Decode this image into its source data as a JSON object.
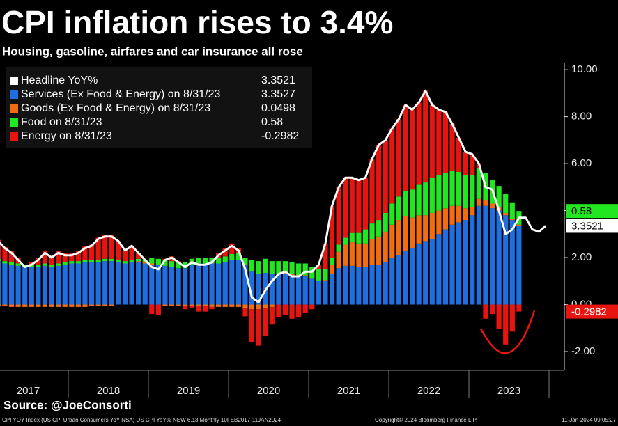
{
  "chart_data": {
    "type": "bar",
    "title": "CPI inflation rises to 3.4%",
    "subtitle": "Housing, gasoline, airfares and car insurance all rose",
    "source": "Source: @JoeConsorti",
    "footer": [
      "CPI YOY Index (US CPI Urban Consumers YoY NSA) US CPI YoY% NEW 6.13  Monthly 10FEB2017-11JAN2024",
      "Copyright© 2024 Bloomberg Finance L.P.",
      "11-Jan-2024 09:05:27"
    ],
    "x_labels": [
      "2017",
      "2018",
      "2019",
      "2020",
      "2021",
      "2022",
      "2023"
    ],
    "xlim": [
      2017,
      2024
    ],
    "xticks": [
      2018,
      2019,
      2020,
      2021,
      2022,
      2023,
      2024
    ],
    "ylim": [
      -2.8,
      10.3
    ],
    "yticks": [
      {
        "value": 10,
        "label": "10.00"
      },
      {
        "value": 8,
        "label": "8.00"
      },
      {
        "value": 6,
        "label": "6.00"
      },
      {
        "value": 4,
        "label": "4.00"
      },
      {
        "value": 2,
        "label": "2.00"
      },
      {
        "value": 0,
        "label": "0.00"
      },
      {
        "value": -2,
        "label": "-2.00"
      }
    ],
    "series": [
      {
        "name": "Headline YoY%",
        "color": "#ffffff",
        "type": "line",
        "values": [
          2.7,
          2.4,
          2.2,
          1.9,
          1.6,
          1.7,
          1.9,
          2.2,
          2.0,
          2.2,
          2.1,
          2.1,
          2.2,
          2.4,
          2.5,
          2.8,
          2.9,
          2.9,
          2.7,
          2.3,
          2.5,
          2.2,
          1.9,
          1.6,
          1.5,
          1.9,
          2.0,
          1.8,
          1.6,
          1.8,
          1.7,
          1.7,
          1.8,
          2.1,
          2.3,
          2.5,
          2.3,
          1.5,
          0.3,
          0.1,
          0.6,
          1.0,
          1.3,
          1.4,
          1.2,
          1.2,
          1.4,
          1.4,
          1.7,
          2.6,
          4.2,
          5.0,
          5.4,
          5.4,
          5.3,
          5.4,
          6.2,
          6.8,
          7.0,
          7.5,
          7.9,
          8.5,
          8.3,
          8.6,
          9.1,
          8.5,
          8.3,
          8.2,
          7.7,
          7.1,
          6.5,
          6.4,
          6.0,
          5.0,
          4.9,
          4.0,
          3.0,
          3.2,
          3.7,
          3.7,
          3.2,
          3.1,
          3.3521
        ]
      },
      {
        "name": "Services (Ex Food & Energy) on 8/31/23",
        "color": "#1f6fe0",
        "type": "bar",
        "values": [
          1.85,
          1.75,
          1.7,
          1.65,
          1.6,
          1.6,
          1.6,
          1.65,
          1.6,
          1.65,
          1.7,
          1.75,
          1.75,
          1.8,
          1.8,
          1.8,
          1.85,
          1.85,
          1.8,
          1.75,
          1.8,
          1.8,
          1.75,
          1.7,
          1.7,
          1.65,
          1.6,
          1.55,
          1.55,
          1.7,
          1.75,
          1.75,
          1.75,
          1.75,
          1.8,
          1.9,
          1.9,
          1.7,
          1.4,
          1.3,
          1.35,
          1.3,
          1.3,
          1.3,
          1.25,
          1.2,
          1.2,
          1.1,
          1.0,
          1.0,
          1.3,
          1.55,
          1.65,
          1.65,
          1.6,
          1.6,
          1.7,
          1.7,
          1.8,
          2.0,
          2.1,
          2.3,
          2.4,
          2.6,
          2.7,
          2.8,
          3.0,
          3.2,
          3.4,
          3.5,
          3.6,
          3.8,
          4.2,
          4.2,
          4.1,
          4.0,
          3.8,
          3.6,
          3.3527,
          null,
          null,
          null,
          null
        ]
      },
      {
        "name": "Goods (Ex Food & Energy) on 8/31/23",
        "color": "#f26d12",
        "type": "bar",
        "values": [
          -0.05,
          -0.05,
          -0.1,
          -0.1,
          -0.1,
          -0.1,
          -0.1,
          -0.1,
          -0.1,
          -0.1,
          -0.1,
          -0.1,
          -0.1,
          -0.1,
          -0.05,
          -0.05,
          -0.05,
          -0.05,
          0,
          0,
          0,
          0.05,
          0.05,
          0.05,
          0,
          -0.05,
          -0.05,
          -0.05,
          -0.05,
          -0.05,
          -0.05,
          -0.05,
          -0.1,
          -0.1,
          -0.1,
          -0.1,
          -0.1,
          -0.15,
          -0.2,
          -0.2,
          -0.15,
          -0.1,
          0,
          0.05,
          0.05,
          0.05,
          0.05,
          0,
          0,
          0.05,
          0.4,
          0.7,
          0.9,
          1.0,
          1.0,
          1.0,
          1.1,
          1.2,
          1.3,
          1.4,
          1.5,
          1.45,
          1.3,
          1.2,
          1.1,
          1.1,
          1.0,
          0.9,
          0.8,
          0.7,
          0.5,
          0.35,
          0.3,
          0.25,
          0.2,
          0.15,
          0.1,
          0.05,
          0.0498,
          null,
          null,
          null,
          null
        ]
      },
      {
        "name": "Food on 8/31/23",
        "color": "#22e61f",
        "type": "bar",
        "values": [
          0.1,
          0.1,
          0.1,
          0.1,
          0.1,
          0.1,
          0.1,
          0.1,
          0.1,
          0.1,
          0.1,
          0.1,
          0.1,
          0.1,
          0.1,
          0.1,
          0.1,
          0.1,
          0.1,
          0.1,
          0.1,
          0.1,
          0.1,
          0.25,
          0.25,
          0.25,
          0.25,
          0.25,
          0.25,
          0.25,
          0.25,
          0.25,
          0.25,
          0.25,
          0.25,
          0.25,
          0.3,
          0.3,
          0.5,
          0.55,
          0.6,
          0.55,
          0.55,
          0.5,
          0.5,
          0.5,
          0.5,
          0.5,
          0.5,
          0.45,
          0.3,
          0.3,
          0.3,
          0.4,
          0.45,
          0.6,
          0.65,
          0.7,
          0.8,
          0.9,
          1.0,
          1.1,
          1.2,
          1.3,
          1.4,
          1.5,
          1.5,
          1.5,
          1.5,
          1.45,
          1.4,
          1.35,
          1.3,
          1.15,
          1.0,
          0.9,
          0.8,
          0.7,
          0.58,
          null,
          null,
          null,
          null
        ]
      },
      {
        "name": "Energy on 8/31/23",
        "color": "#e8140f",
        "type": "bar",
        "values": [
          0.8,
          0.6,
          0.5,
          0.25,
          0,
          0.1,
          0.3,
          0.55,
          0.4,
          0.55,
          0.4,
          0.35,
          0.45,
          0.6,
          0.65,
          0.95,
          1.0,
          1.0,
          0.8,
          0.45,
          0.6,
          0.25,
          0,
          -0.4,
          -0.45,
          0.05,
          0.2,
          0.05,
          -0.15,
          -0.1,
          -0.25,
          -0.25,
          -0.1,
          0.2,
          0.35,
          0.45,
          0.2,
          -0.35,
          -1.4,
          -1.55,
          -1.2,
          -0.75,
          -0.55,
          -0.45,
          -0.6,
          -0.55,
          -0.35,
          -0.2,
          0.2,
          1.1,
          2.2,
          2.45,
          2.55,
          2.35,
          2.25,
          2.2,
          2.75,
          3.2,
          3.1,
          3.2,
          3.3,
          3.65,
          3.4,
          3.5,
          3.9,
          3.1,
          2.8,
          2.6,
          2.0,
          1.45,
          1.0,
          0.9,
          0.2,
          -0.6,
          -0.4,
          -1.05,
          -1.7,
          -1.15,
          -0.2982,
          null,
          null,
          null,
          null
        ]
      }
    ]
  }
}
